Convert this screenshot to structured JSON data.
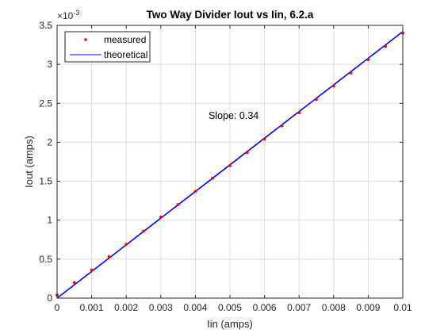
{
  "chart_data": {
    "type": "scatter",
    "title": "Two Way Divider Iout vs Iin, 6.2.a",
    "xlabel": "Iin (amps)",
    "ylabel": "Iout (amps)",
    "y_scale_multiplier": "×10",
    "y_scale_exponent": "-3",
    "xlim": [
      0,
      0.01
    ],
    "ylim": [
      0,
      3.5
    ],
    "x_ticks": [
      "0",
      "0.001",
      "0.002",
      "0.003",
      "0.004",
      "0.005",
      "0.006",
      "0.007",
      "0.008",
      "0.009",
      "0.01"
    ],
    "y_ticks": [
      "0",
      "0.5",
      "1",
      "1.5",
      "2",
      "2.5",
      "3",
      "3.5"
    ],
    "grid": true,
    "legend_position": "top-left",
    "annotation": "Slope: 0.34",
    "series": [
      {
        "name": "measured",
        "style": "markers",
        "color": "#ff0000",
        "x": [
          0,
          0.0005,
          0.001,
          0.0015,
          0.002,
          0.0025,
          0.003,
          0.0035,
          0.004,
          0.0045,
          0.005,
          0.0055,
          0.006,
          0.0065,
          0.007,
          0.0075,
          0.008,
          0.0085,
          0.009,
          0.0095,
          0.01
        ],
        "y": [
          0.04,
          0.2,
          0.36,
          0.53,
          0.69,
          0.86,
          1.04,
          1.2,
          1.37,
          1.54,
          1.7,
          1.87,
          2.04,
          2.21,
          2.38,
          2.55,
          2.72,
          2.89,
          3.06,
          3.23,
          3.4
        ]
      },
      {
        "name": "theoretical",
        "style": "line",
        "color": "#0000ff",
        "x": [
          0,
          0.01
        ],
        "y": [
          0.0,
          3.42
        ]
      }
    ]
  }
}
